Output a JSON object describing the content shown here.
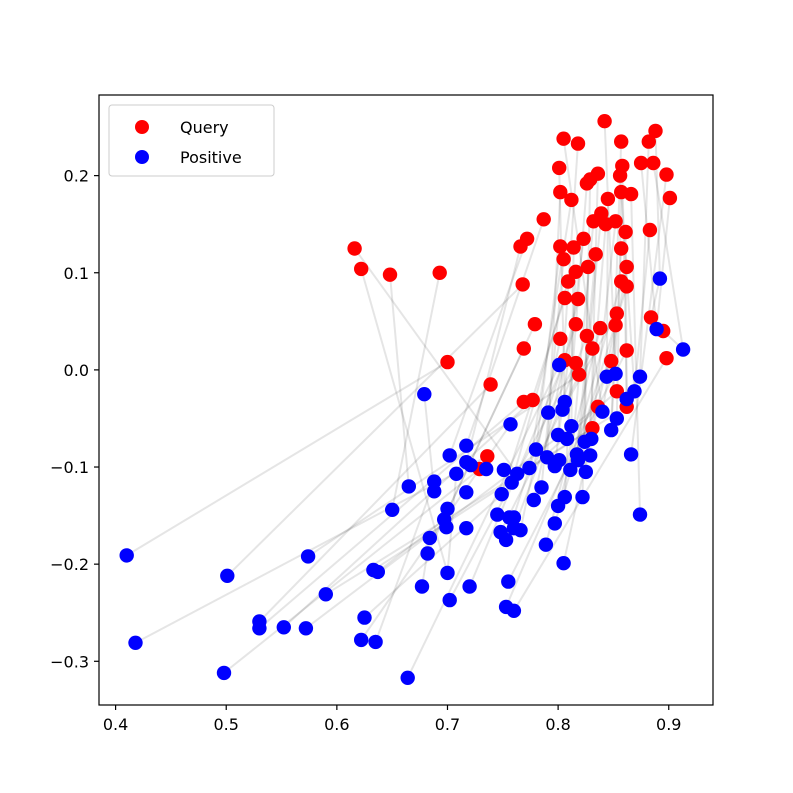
{
  "chart_data": {
    "type": "scatter",
    "title": "",
    "xlabel": "",
    "ylabel": "",
    "xlim": [
      0.385,
      0.94
    ],
    "ylim": [
      -0.345,
      0.283
    ],
    "grid": false,
    "legend_position": "top-left",
    "x_ticks": [
      0.4,
      0.5,
      0.6,
      0.7,
      0.8,
      0.9
    ],
    "x_tick_labels": [
      "0.4",
      "0.5",
      "0.6",
      "0.7",
      "0.8",
      "0.9"
    ],
    "y_ticks": [
      -0.3,
      -0.2,
      -0.1,
      0.0,
      0.1,
      0.2
    ],
    "y_tick_labels": [
      "−0.3",
      "−0.2",
      "−0.1",
      "0.0",
      "0.1",
      "0.2"
    ],
    "series": [
      {
        "name": "Query",
        "color": "#ff0000",
        "points": [
          [
            0.842,
            0.256
          ],
          [
            0.805,
            0.238
          ],
          [
            0.818,
            0.233
          ],
          [
            0.888,
            0.246
          ],
          [
            0.882,
            0.235
          ],
          [
            0.857,
            0.235
          ],
          [
            0.801,
            0.208
          ],
          [
            0.858,
            0.21
          ],
          [
            0.829,
            0.196
          ],
          [
            0.836,
            0.202
          ],
          [
            0.826,
            0.192
          ],
          [
            0.856,
            0.2
          ],
          [
            0.875,
            0.213
          ],
          [
            0.886,
            0.213
          ],
          [
            0.898,
            0.201
          ],
          [
            0.802,
            0.183
          ],
          [
            0.812,
            0.175
          ],
          [
            0.857,
            0.183
          ],
          [
            0.866,
            0.181
          ],
          [
            0.901,
            0.177
          ],
          [
            0.845,
            0.176
          ],
          [
            0.839,
            0.161
          ],
          [
            0.832,
            0.153
          ],
          [
            0.843,
            0.15
          ],
          [
            0.787,
            0.155
          ],
          [
            0.852,
            0.153
          ],
          [
            0.861,
            0.142
          ],
          [
            0.883,
            0.144
          ],
          [
            0.823,
            0.135
          ],
          [
            0.772,
            0.135
          ],
          [
            0.766,
            0.127
          ],
          [
            0.802,
            0.127
          ],
          [
            0.814,
            0.126
          ],
          [
            0.834,
            0.119
          ],
          [
            0.857,
            0.125
          ],
          [
            0.862,
            0.106
          ],
          [
            0.827,
            0.106
          ],
          [
            0.816,
            0.101
          ],
          [
            0.805,
            0.114
          ],
          [
            0.616,
            0.125
          ],
          [
            0.622,
            0.104
          ],
          [
            0.648,
            0.098
          ],
          [
            0.693,
            0.1
          ],
          [
            0.768,
            0.088
          ],
          [
            0.809,
            0.091
          ],
          [
            0.857,
            0.091
          ],
          [
            0.862,
            0.086
          ],
          [
            0.818,
            0.073
          ],
          [
            0.806,
            0.074
          ],
          [
            0.853,
            0.058
          ],
          [
            0.884,
            0.054
          ],
          [
            0.852,
            0.046
          ],
          [
            0.838,
            0.043
          ],
          [
            0.816,
            0.047
          ],
          [
            0.779,
            0.047
          ],
          [
            0.895,
            0.04
          ],
          [
            0.802,
            0.032
          ],
          [
            0.826,
            0.035
          ],
          [
            0.831,
            0.022
          ],
          [
            0.769,
            0.022
          ],
          [
            0.862,
            0.02
          ],
          [
            0.806,
            0.01
          ],
          [
            0.816,
            0.007
          ],
          [
            0.848,
            0.009
          ],
          [
            0.898,
            0.012
          ],
          [
            0.7,
            0.008
          ],
          [
            0.739,
            -0.015
          ],
          [
            0.819,
            -0.005
          ],
          [
            0.769,
            -0.033
          ],
          [
            0.777,
            -0.031
          ],
          [
            0.836,
            -0.038
          ],
          [
            0.862,
            -0.038
          ],
          [
            0.853,
            -0.022
          ],
          [
            0.831,
            -0.06
          ],
          [
            0.736,
            -0.089
          ],
          [
            0.729,
            -0.102
          ]
        ]
      },
      {
        "name": "Positive",
        "color": "#0000ff",
        "points": [
          [
            0.892,
            0.094
          ],
          [
            0.889,
            0.042
          ],
          [
            0.913,
            0.021
          ],
          [
            0.852,
            -0.004
          ],
          [
            0.874,
            -0.007
          ],
          [
            0.844,
            -0.007
          ],
          [
            0.801,
            0.005
          ],
          [
            0.84,
            -0.043
          ],
          [
            0.862,
            -0.03
          ],
          [
            0.869,
            -0.022
          ],
          [
            0.679,
            -0.025
          ],
          [
            0.804,
            -0.041
          ],
          [
            0.806,
            -0.033
          ],
          [
            0.791,
            -0.044
          ],
          [
            0.853,
            -0.05
          ],
          [
            0.848,
            -0.062
          ],
          [
            0.757,
            -0.056
          ],
          [
            0.812,
            -0.058
          ],
          [
            0.8,
            -0.067
          ],
          [
            0.83,
            -0.071
          ],
          [
            0.824,
            -0.074
          ],
          [
            0.808,
            -0.071
          ],
          [
            0.78,
            -0.082
          ],
          [
            0.817,
            -0.087
          ],
          [
            0.829,
            -0.088
          ],
          [
            0.866,
            -0.087
          ],
          [
            0.717,
            -0.078
          ],
          [
            0.702,
            -0.088
          ],
          [
            0.717,
            -0.095
          ],
          [
            0.774,
            -0.101
          ],
          [
            0.79,
            -0.09
          ],
          [
            0.801,
            -0.093
          ],
          [
            0.818,
            -0.093
          ],
          [
            0.811,
            -0.103
          ],
          [
            0.797,
            -0.099
          ],
          [
            0.825,
            -0.105
          ],
          [
            0.708,
            -0.107
          ],
          [
            0.721,
            -0.098
          ],
          [
            0.751,
            -0.103
          ],
          [
            0.763,
            -0.107
          ],
          [
            0.735,
            -0.102
          ],
          [
            0.758,
            -0.116
          ],
          [
            0.785,
            -0.121
          ],
          [
            0.778,
            -0.134
          ],
          [
            0.822,
            -0.131
          ],
          [
            0.806,
            -0.131
          ],
          [
            0.749,
            -0.128
          ],
          [
            0.665,
            -0.12
          ],
          [
            0.688,
            -0.115
          ],
          [
            0.688,
            -0.125
          ],
          [
            0.717,
            -0.126
          ],
          [
            0.65,
            -0.144
          ],
          [
            0.7,
            -0.143
          ],
          [
            0.745,
            -0.149
          ],
          [
            0.766,
            -0.165
          ],
          [
            0.756,
            -0.152
          ],
          [
            0.76,
            -0.152
          ],
          [
            0.8,
            -0.14
          ],
          [
            0.797,
            -0.158
          ],
          [
            0.874,
            -0.149
          ],
          [
            0.697,
            -0.154
          ],
          [
            0.717,
            -0.163
          ],
          [
            0.699,
            -0.162
          ],
          [
            0.748,
            -0.167
          ],
          [
            0.76,
            -0.163
          ],
          [
            0.753,
            -0.175
          ],
          [
            0.684,
            -0.173
          ],
          [
            0.789,
            -0.18
          ],
          [
            0.682,
            -0.189
          ],
          [
            0.41,
            -0.191
          ],
          [
            0.574,
            -0.192
          ],
          [
            0.805,
            -0.199
          ],
          [
            0.501,
            -0.212
          ],
          [
            0.633,
            -0.206
          ],
          [
            0.637,
            -0.208
          ],
          [
            0.7,
            -0.209
          ],
          [
            0.755,
            -0.218
          ],
          [
            0.677,
            -0.223
          ],
          [
            0.72,
            -0.223
          ],
          [
            0.59,
            -0.231
          ],
          [
            0.702,
            -0.237
          ],
          [
            0.53,
            -0.259
          ],
          [
            0.625,
            -0.255
          ],
          [
            0.753,
            -0.244
          ],
          [
            0.76,
            -0.248
          ],
          [
            0.53,
            -0.266
          ],
          [
            0.552,
            -0.265
          ],
          [
            0.572,
            -0.266
          ],
          [
            0.622,
            -0.278
          ],
          [
            0.635,
            -0.28
          ],
          [
            0.418,
            -0.281
          ],
          [
            0.498,
            -0.312
          ],
          [
            0.664,
            -0.317
          ]
        ]
      }
    ],
    "pairs": [
      [
        0.842,
        0.256,
        0.852,
        -0.004
      ],
      [
        0.805,
        0.238,
        0.84,
        -0.043
      ],
      [
        0.818,
        0.233,
        0.8,
        -0.067
      ],
      [
        0.888,
        0.246,
        0.892,
        0.094
      ],
      [
        0.882,
        0.235,
        0.874,
        -0.007
      ],
      [
        0.857,
        0.235,
        0.848,
        -0.062
      ],
      [
        0.801,
        0.208,
        0.806,
        -0.033
      ],
      [
        0.858,
        0.21,
        0.862,
        -0.03
      ],
      [
        0.829,
        0.196,
        0.824,
        -0.074
      ],
      [
        0.836,
        0.202,
        0.829,
        -0.088
      ],
      [
        0.826,
        0.192,
        0.808,
        -0.071
      ],
      [
        0.856,
        0.2,
        0.869,
        -0.022
      ],
      [
        0.875,
        0.213,
        0.889,
        0.042
      ],
      [
        0.886,
        0.213,
        0.913,
        0.021
      ],
      [
        0.898,
        0.201,
        0.866,
        -0.087
      ],
      [
        0.802,
        0.183,
        0.79,
        -0.09
      ],
      [
        0.812,
        0.175,
        0.774,
        -0.101
      ],
      [
        0.857,
        0.183,
        0.853,
        -0.05
      ],
      [
        0.866,
        0.181,
        0.874,
        -0.149
      ],
      [
        0.901,
        0.177,
        0.889,
        0.042
      ],
      [
        0.845,
        0.176,
        0.844,
        -0.007
      ],
      [
        0.839,
        0.161,
        0.818,
        -0.093
      ],
      [
        0.832,
        0.153,
        0.811,
        -0.103
      ],
      [
        0.843,
        0.15,
        0.825,
        -0.105
      ],
      [
        0.787,
        0.155,
        0.717,
        -0.078
      ],
      [
        0.852,
        0.153,
        0.83,
        -0.071
      ],
      [
        0.861,
        0.142,
        0.862,
        -0.03
      ],
      [
        0.883,
        0.144,
        0.869,
        -0.022
      ],
      [
        0.823,
        0.135,
        0.797,
        -0.099
      ],
      [
        0.772,
        0.135,
        0.702,
        -0.088
      ],
      [
        0.766,
        0.127,
        0.717,
        -0.095
      ],
      [
        0.802,
        0.127,
        0.78,
        -0.082
      ],
      [
        0.814,
        0.126,
        0.812,
        -0.058
      ],
      [
        0.834,
        0.119,
        0.817,
        -0.087
      ],
      [
        0.857,
        0.125,
        0.848,
        -0.062
      ],
      [
        0.862,
        0.106,
        0.84,
        -0.043
      ],
      [
        0.827,
        0.106,
        0.822,
        -0.131
      ],
      [
        0.816,
        0.101,
        0.806,
        -0.131
      ],
      [
        0.805,
        0.114,
        0.785,
        -0.121
      ],
      [
        0.616,
        0.125,
        0.763,
        -0.107
      ],
      [
        0.622,
        0.104,
        0.7,
        -0.209
      ],
      [
        0.648,
        0.098,
        0.665,
        -0.12
      ],
      [
        0.693,
        0.1,
        0.65,
        -0.144
      ],
      [
        0.768,
        0.088,
        0.501,
        -0.212
      ],
      [
        0.809,
        0.091,
        0.758,
        -0.116
      ],
      [
        0.857,
        0.091,
        0.8,
        -0.14
      ],
      [
        0.862,
        0.086,
        0.797,
        -0.158
      ],
      [
        0.818,
        0.073,
        0.778,
        -0.134
      ],
      [
        0.806,
        0.074,
        0.749,
        -0.128
      ],
      [
        0.853,
        0.058,
        0.804,
        -0.041
      ],
      [
        0.884,
        0.054,
        0.892,
        0.094
      ],
      [
        0.852,
        0.046,
        0.805,
        -0.199
      ],
      [
        0.838,
        0.043,
        0.789,
        -0.18
      ],
      [
        0.816,
        0.047,
        0.753,
        -0.175
      ],
      [
        0.779,
        0.047,
        0.701,
        -0.143
      ],
      [
        0.895,
        0.04,
        0.913,
        0.021
      ],
      [
        0.802,
        0.032,
        0.766,
        -0.165
      ],
      [
        0.826,
        0.035,
        0.76,
        -0.163
      ],
      [
        0.831,
        0.022,
        0.748,
        -0.167
      ],
      [
        0.769,
        0.022,
        0.682,
        -0.189
      ],
      [
        0.862,
        0.02,
        0.755,
        -0.218
      ],
      [
        0.806,
        0.01,
        0.72,
        -0.223
      ],
      [
        0.816,
        0.007,
        0.702,
        -0.237
      ],
      [
        0.848,
        0.009,
        0.753,
        -0.244
      ],
      [
        0.898,
        0.012,
        0.76,
        -0.248
      ],
      [
        0.7,
        0.008,
        0.41,
        -0.191
      ],
      [
        0.739,
        -0.015,
        0.53,
        -0.259
      ],
      [
        0.819,
        -0.005,
        0.574,
        -0.192
      ],
      [
        0.769,
        -0.033,
        0.53,
        -0.266
      ],
      [
        0.777,
        -0.031,
        0.552,
        -0.265
      ],
      [
        0.836,
        -0.038,
        0.572,
        -0.266
      ],
      [
        0.862,
        -0.038,
        0.59,
        -0.231
      ],
      [
        0.853,
        -0.022,
        0.625,
        -0.255
      ],
      [
        0.831,
        -0.06,
        0.633,
        -0.206
      ],
      [
        0.736,
        -0.089,
        0.418,
        -0.281
      ],
      [
        0.729,
        -0.102,
        0.498,
        -0.312
      ],
      [
        0.801,
        0.005,
        0.664,
        -0.317
      ],
      [
        0.757,
        -0.056,
        0.622,
        -0.278
      ],
      [
        0.688,
        -0.115,
        0.635,
        -0.28
      ],
      [
        0.697,
        -0.154,
        0.637,
        -0.208
      ],
      [
        0.684,
        -0.173,
        0.677,
        -0.223
      ],
      [
        0.708,
        -0.107,
        0.7,
        -0.209
      ],
      [
        0.679,
        -0.025,
        0.688,
        -0.125
      ]
    ],
    "legend": [
      {
        "label": "Query",
        "color": "#ff0000"
      },
      {
        "label": "Positive",
        "color": "#0000ff"
      }
    ]
  }
}
